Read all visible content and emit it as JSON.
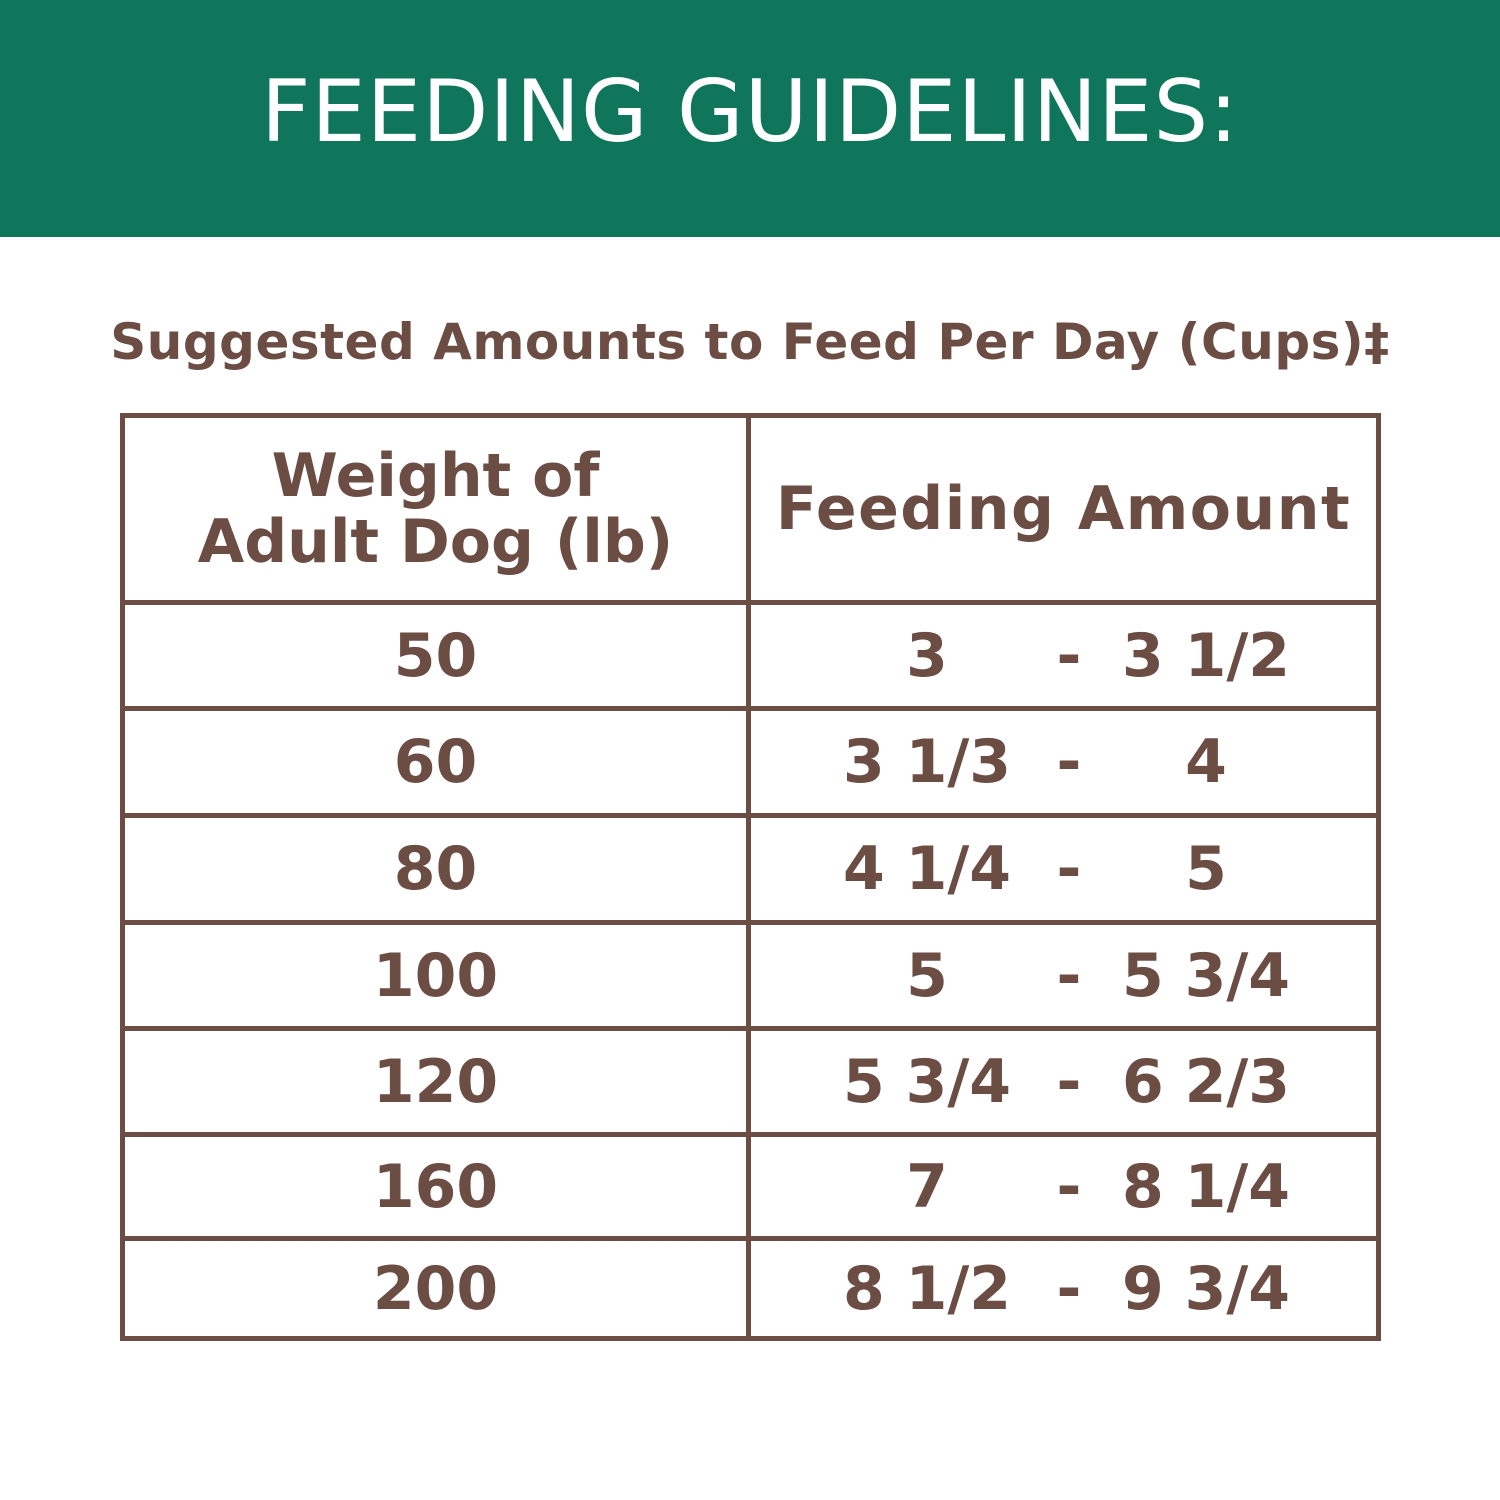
{
  "banner": {
    "title": "FEEDING GUIDELINES:",
    "color": "#0f765b"
  },
  "subtitle": "Suggested Amounts to Feed Per Day (Cups)‡",
  "text_color": "#6b4d44",
  "table": {
    "headers": {
      "weight_line1": "Weight of",
      "weight_line2": "Adult Dog (lb)",
      "amount": "Feeding Amount"
    },
    "rows": [
      {
        "weight": "50",
        "from": "3",
        "dash": "-",
        "to": "3 1/2"
      },
      {
        "weight": "60",
        "from": "3 1/3",
        "dash": "-",
        "to": "4"
      },
      {
        "weight": "80",
        "from": "4 1/4",
        "dash": "-",
        "to": "5"
      },
      {
        "weight": "100",
        "from": "5",
        "dash": "-",
        "to": "5 3/4"
      },
      {
        "weight": "120",
        "from": "5 3/4",
        "dash": "-",
        "to": "6 2/3"
      },
      {
        "weight": "160",
        "from": "7",
        "dash": "-",
        "to": "8 1/4"
      },
      {
        "weight": "200",
        "from": "8 1/2",
        "dash": "-",
        "to": "9 3/4"
      }
    ]
  }
}
